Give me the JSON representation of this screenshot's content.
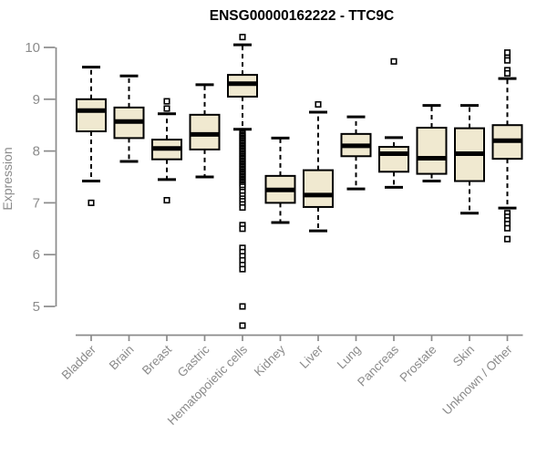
{
  "page": {
    "background": "#ffffff"
  },
  "chart_data": {
    "type": "boxplot",
    "title": "ENSG00000162222 - TTC9C",
    "xlabel": "",
    "ylabel": "Expression",
    "ylim": [
      4.4,
      10.3
    ],
    "grid": false,
    "legend": "none",
    "axis_y": {
      "min": 5,
      "max": 10,
      "ticks": [
        5,
        6,
        7,
        8,
        9,
        10
      ],
      "tick_labels": [
        "5",
        "6",
        "7",
        "8",
        "9",
        "10"
      ]
    },
    "colors": {
      "box_fill": "#f0e9d0",
      "box_stroke": "#000000",
      "median": "#000000",
      "whisker": "#000000",
      "outlier_stroke": "#000000",
      "axis": "#8b8b8b",
      "tick_label": "#8b8b8b",
      "title": "#000000"
    },
    "categories": [
      "Bladder",
      "Brain",
      "Breast",
      "Gastric",
      "Hematopoietic cells",
      "Kidney",
      "Liver",
      "Lung",
      "Pancreas",
      "Prostate",
      "Skin",
      "Unknown / Other"
    ],
    "series": [
      {
        "name": "Bladder",
        "whisker_low": 7.42,
        "q1": 8.38,
        "median": 8.78,
        "q3": 9.0,
        "whisker_high": 9.62,
        "outliers": [
          7.0
        ]
      },
      {
        "name": "Brain",
        "whisker_low": 7.8,
        "q1": 8.25,
        "median": 8.57,
        "q3": 8.84,
        "whisker_high": 9.45,
        "outliers": []
      },
      {
        "name": "Breast",
        "whisker_low": 7.45,
        "q1": 7.84,
        "median": 8.05,
        "q3": 8.22,
        "whisker_high": 8.72,
        "outliers": [
          8.96,
          8.82,
          7.05
        ]
      },
      {
        "name": "Gastric",
        "whisker_low": 7.5,
        "q1": 8.03,
        "median": 8.32,
        "q3": 8.7,
        "whisker_high": 9.28,
        "outliers": []
      },
      {
        "name": "Hematopoietic cells",
        "whisker_low": 8.42,
        "q1": 9.05,
        "median": 9.3,
        "q3": 9.47,
        "whisker_high": 10.05,
        "outliers": [
          10.2,
          8.36,
          8.34,
          8.31,
          8.29,
          8.26,
          8.24,
          8.21,
          8.19,
          8.16,
          8.14,
          8.11,
          8.09,
          8.06,
          8.04,
          8.01,
          7.99,
          7.96,
          7.94,
          7.91,
          7.89,
          7.86,
          7.84,
          7.81,
          7.79,
          7.76,
          7.74,
          7.71,
          7.69,
          7.66,
          7.64,
          7.61,
          7.59,
          7.56,
          7.54,
          7.51,
          7.49,
          7.46,
          7.44,
          7.41,
          7.39,
          7.36,
          7.34,
          7.31,
          7.25,
          7.21,
          7.14,
          7.08,
          7.03,
          6.97,
          6.91,
          6.57,
          6.5,
          6.13,
          6.05,
          5.97,
          5.89,
          5.8,
          5.72,
          5.0,
          4.63
        ]
      },
      {
        "name": "Kidney",
        "whisker_low": 6.62,
        "q1": 7.0,
        "median": 7.25,
        "q3": 7.52,
        "whisker_high": 8.25,
        "outliers": []
      },
      {
        "name": "Liver",
        "whisker_low": 6.46,
        "q1": 6.92,
        "median": 7.15,
        "q3": 7.63,
        "whisker_high": 8.75,
        "outliers": [
          8.9
        ]
      },
      {
        "name": "Lung",
        "whisker_low": 7.27,
        "q1": 7.9,
        "median": 8.1,
        "q3": 8.33,
        "whisker_high": 8.66,
        "outliers": []
      },
      {
        "name": "Pancreas",
        "whisker_low": 7.3,
        "q1": 7.6,
        "median": 7.95,
        "q3": 8.08,
        "whisker_high": 8.26,
        "outliers": [
          9.73
        ]
      },
      {
        "name": "Prostate",
        "whisker_low": 7.42,
        "q1": 7.56,
        "median": 7.86,
        "q3": 8.45,
        "whisker_high": 8.88,
        "outliers": []
      },
      {
        "name": "Skin",
        "whisker_low": 6.8,
        "q1": 7.42,
        "median": 7.95,
        "q3": 8.44,
        "whisker_high": 8.88,
        "outliers": []
      },
      {
        "name": "Unknown / Other",
        "whisker_low": 6.9,
        "q1": 7.85,
        "median": 8.2,
        "q3": 8.5,
        "whisker_high": 9.4,
        "outliers": [
          9.9,
          9.8,
          9.75,
          9.56,
          9.5,
          6.8,
          6.73,
          6.66,
          6.59,
          6.51,
          6.3
        ]
      }
    ]
  }
}
